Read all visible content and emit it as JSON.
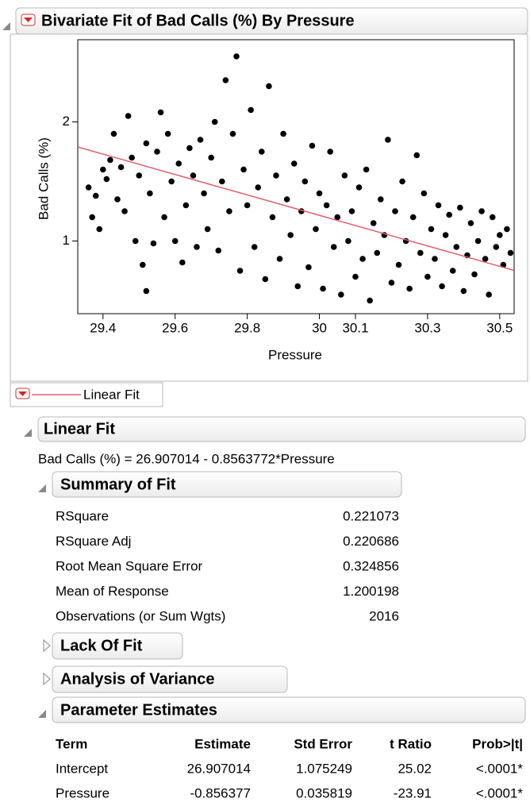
{
  "chart_data": {
    "type": "scatter",
    "title": "Bivariate Fit of Bad Calls (%) By Pressure",
    "x_label": "Pressure",
    "y_label": "Bad Calls (%)",
    "x": [
      29.36,
      29.37,
      29.38,
      29.39,
      29.4,
      29.41,
      29.42,
      29.43,
      29.44,
      29.45,
      29.46,
      29.47,
      29.48,
      29.49,
      29.5,
      29.51,
      29.52,
      29.52,
      29.53,
      29.54,
      29.55,
      29.56,
      29.57,
      29.58,
      29.59,
      29.6,
      29.61,
      29.62,
      29.63,
      29.64,
      29.65,
      29.66,
      29.67,
      29.68,
      29.69,
      29.7,
      29.71,
      29.72,
      29.73,
      29.74,
      29.75,
      29.76,
      29.77,
      29.78,
      29.79,
      29.8,
      29.81,
      29.82,
      29.83,
      29.84,
      29.85,
      29.86,
      29.87,
      29.88,
      29.89,
      29.9,
      29.91,
      29.92,
      29.93,
      29.94,
      29.95,
      29.96,
      29.97,
      29.98,
      29.99,
      30.0,
      30.01,
      30.02,
      30.03,
      30.04,
      30.05,
      30.06,
      30.07,
      30.08,
      30.09,
      30.1,
      30.11,
      30.12,
      30.13,
      30.14,
      30.15,
      30.16,
      30.17,
      30.18,
      30.19,
      30.2,
      30.21,
      30.22,
      30.23,
      30.24,
      30.25,
      30.26,
      30.27,
      30.28,
      30.29,
      30.3,
      30.31,
      30.32,
      30.33,
      30.34,
      30.35,
      30.36,
      30.37,
      30.38,
      30.39,
      30.4,
      30.41,
      30.42,
      30.43,
      30.44,
      30.45,
      30.46,
      30.47,
      30.48,
      30.49,
      30.5,
      30.51,
      30.52,
      30.53
    ],
    "y": [
      1.45,
      1.2,
      1.38,
      1.1,
      1.6,
      1.52,
      1.68,
      1.9,
      1.35,
      1.62,
      1.25,
      2.05,
      1.7,
      1.0,
      1.55,
      0.8,
      0.58,
      1.82,
      1.4,
      0.98,
      1.75,
      2.08,
      1.2,
      1.9,
      1.5,
      1.0,
      1.65,
      0.82,
      1.3,
      1.78,
      1.55,
      0.95,
      1.85,
      1.4,
      1.1,
      1.7,
      2.0,
      0.92,
      1.5,
      2.35,
      1.25,
      1.9,
      2.55,
      0.75,
      1.6,
      1.3,
      2.1,
      0.95,
      1.45,
      1.75,
      0.68,
      2.3,
      1.2,
      1.55,
      0.85,
      1.9,
      1.35,
      1.05,
      1.65,
      0.62,
      1.25,
      1.5,
      0.78,
      1.8,
      1.1,
      1.4,
      0.6,
      1.3,
      1.75,
      0.95,
      1.2,
      0.55,
      1.55,
      1.0,
      1.25,
      0.7,
      1.45,
      0.85,
      1.6,
      0.5,
      1.15,
      0.9,
      1.35,
      1.05,
      1.85,
      0.65,
      1.25,
      0.8,
      1.5,
      1.0,
      0.6,
      1.2,
      1.72,
      0.9,
      1.4,
      0.7,
      1.1,
      0.85,
      1.3,
      0.62,
      1.05,
      1.22,
      0.75,
      0.95,
      1.28,
      0.58,
      0.88,
      1.15,
      0.72,
      1.0,
      1.25,
      0.85,
      0.55,
      1.2,
      0.95,
      1.05,
      0.8,
      1.1,
      0.9
    ],
    "color": "#000000",
    "xlim": [
      29.33,
      30.54
    ],
    "ylim": [
      0.39,
      2.69
    ],
    "xticks": [
      29.4,
      29.6,
      29.8,
      30,
      30.1,
      30.3,
      30.5
    ],
    "yticks": [
      1,
      2
    ],
    "fit_line": {
      "name": "Linear Fit",
      "color": "#e06070",
      "intercept": 26.907014,
      "slope": -0.8563772
    }
  },
  "report": {
    "linear_fit": {
      "title": "Linear Fit",
      "equation": "Bad Calls (%) = 26.907014 - 0.8563772*Pressure"
    },
    "summary_of_fit": {
      "title": "Summary of Fit",
      "rows": [
        [
          "RSquare",
          "0.221073"
        ],
        [
          "RSquare Adj",
          "0.220686"
        ],
        [
          "Root Mean Square Error",
          "0.324856"
        ],
        [
          "Mean of Response",
          "1.200198"
        ],
        [
          "Observations (or Sum Wgts)",
          "2016"
        ]
      ]
    },
    "lack_of_fit": {
      "title": "Lack Of Fit"
    },
    "analysis_of_variance": {
      "title": "Analysis of Variance"
    },
    "parameter_estimates": {
      "title": "Parameter Estimates",
      "columns": [
        "Term",
        "Estimate",
        "Std Error",
        "t Ratio",
        "Prob>|t|"
      ],
      "rows": [
        [
          "Intercept",
          "26.907014",
          "1.075249",
          "25.02",
          "<.0001*"
        ],
        [
          "Pressure",
          "-0.856377",
          "0.035819",
          "-23.91",
          "<.0001*"
        ]
      ]
    }
  }
}
